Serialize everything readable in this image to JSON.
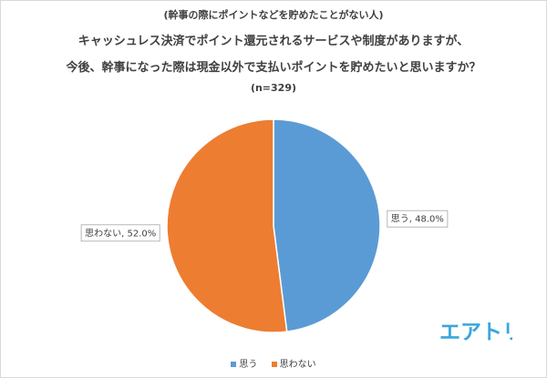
{
  "titles": {
    "line0": "(幹事の際にポイントなどを貯めたことがない人)",
    "line1": "キャッシュレス決済でポイント還元されるサービスや制度がありますが、",
    "line2": "今後、幹事になった際は現金以外で支払いポイントを貯めたいと思いますか？",
    "line3": "(n=329)"
  },
  "logo_text": "エアトリ",
  "colors": {
    "blue": "#5b9bd5",
    "orange": "#ed7d31",
    "logo": "#3aa6dd"
  },
  "chart_data": {
    "type": "pie",
    "title": "今後、幹事になった際は現金以外で支払いポイントを貯めたいと思いますか？",
    "categories": [
      "思う",
      "思わない"
    ],
    "values": [
      48.0,
      52.0
    ],
    "data_labels": [
      "思う, 48.0%",
      "思わない, 52.0%"
    ],
    "start": "12 o'clock, clockwise",
    "legend": {
      "position": "bottom",
      "entries": [
        "思う",
        "思わない"
      ]
    }
  }
}
